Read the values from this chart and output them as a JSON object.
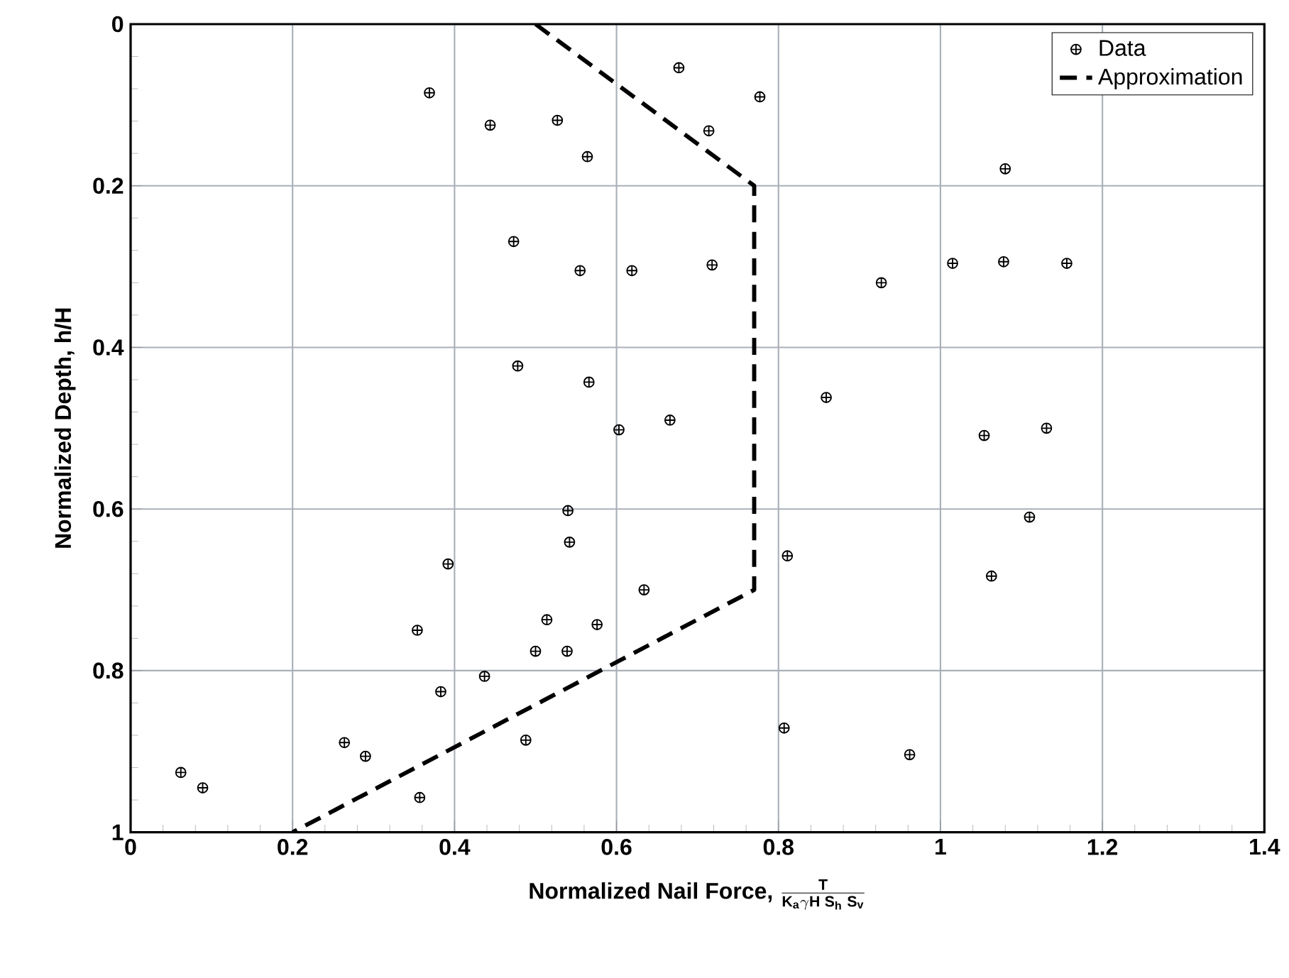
{
  "chart_data": {
    "type": "scatter",
    "xlabel": "\\textbf{Normalized Nail Force, }\\frac{\\mathbf{T}}{\\mathbf{K_{a}}\\gamma\\mathbf{H\\;S_{h}\\;S_{v}}}",
    "ylabel": "Normalized Depth, h/H",
    "xlim": [
      0,
      1.4
    ],
    "ylim": [
      1,
      0
    ],
    "xticks": [
      0,
      0.2,
      0.4,
      0.6,
      0.8,
      1,
      1.2,
      1.4
    ],
    "yticks": [
      0,
      0.2,
      0.4,
      0.6,
      0.8,
      1
    ],
    "grid": true,
    "legend": "top right",
    "series": [
      {
        "name": "Data",
        "marker": "cross",
        "color": "#000000",
        "x": [
          0.369,
          0.444,
          0.527,
          0.564,
          0.677,
          0.714,
          0.777,
          1.08,
          0.473,
          0.555,
          0.619,
          0.718,
          0.927,
          1.015,
          1.078,
          1.156,
          0.478,
          0.566,
          0.603,
          0.666,
          0.859,
          1.054,
          1.131,
          0.54,
          0.542,
          0.392,
          0.811,
          1.11,
          1.063,
          0.634,
          0.354,
          0.514,
          0.576,
          0.5,
          0.539,
          0.437,
          0.383,
          0.264,
          0.29,
          0.488,
          0.357,
          0.062,
          0.089,
          0.807,
          0.962
        ],
        "values": [
          0.085,
          0.125,
          0.119,
          0.164,
          0.054,
          0.132,
          0.09,
          0.179,
          0.269,
          0.305,
          0.305,
          0.298,
          0.32,
          0.296,
          0.294,
          0.296,
          0.423,
          0.443,
          0.502,
          0.49,
          0.462,
          0.509,
          0.5,
          0.602,
          0.641,
          0.668,
          0.658,
          0.61,
          0.683,
          0.7,
          0.75,
          0.737,
          0.743,
          0.776,
          0.776,
          0.807,
          0.826,
          0.889,
          0.906,
          0.886,
          0.957,
          0.926,
          0.945,
          0.871,
          0.904
        ]
      },
      {
        "name": "Approximation",
        "type": "line",
        "line_style": "dashed",
        "color": "#000000",
        "x": [
          0.5,
          0.77,
          0.77,
          0.2
        ],
        "values": [
          0,
          0.2,
          0.7,
          1
        ]
      }
    ]
  }
}
